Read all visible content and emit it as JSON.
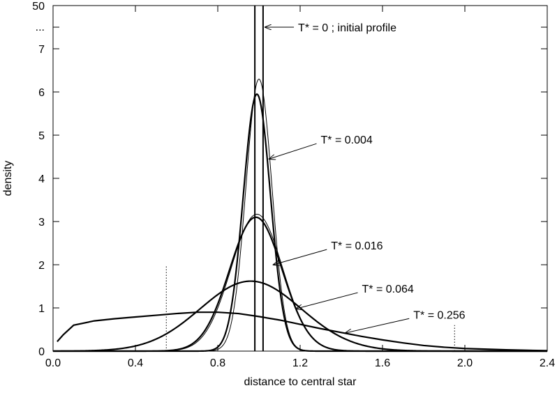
{
  "chart_data": {
    "type": "line",
    "title": "",
    "xlabel": "distance to central star",
    "ylabel": "density",
    "xlim": [
      0,
      2.4
    ],
    "ylim": [
      0,
      8
    ],
    "axis_break": {
      "top_label": "50",
      "break_label": "..."
    },
    "x_ticks": [
      {
        "value": 0.0,
        "label": "0.0"
      },
      {
        "value": 0.4,
        "label": "0.4"
      },
      {
        "value": 0.8,
        "label": "0.8"
      },
      {
        "value": 1.2,
        "label": "1.2"
      },
      {
        "value": 1.6,
        "label": "1.6"
      },
      {
        "value": 2.0,
        "label": "2.0"
      },
      {
        "value": 2.4,
        "label": "2.4"
      }
    ],
    "y_ticks": [
      {
        "value": 0,
        "label": "0"
      },
      {
        "value": 1,
        "label": "1"
      },
      {
        "value": 2,
        "label": "2"
      },
      {
        "value": 3,
        "label": "3"
      },
      {
        "value": 4,
        "label": "4"
      },
      {
        "value": 5,
        "label": "5"
      },
      {
        "value": 6,
        "label": "6"
      },
      {
        "value": 7,
        "label": "7"
      }
    ],
    "grid": false,
    "initial_profile": {
      "x": [
        0.98,
        1.02
      ]
    },
    "series": [
      {
        "T": 0.004,
        "kind": "model",
        "mu": 1.0,
        "sigma": 0.063,
        "peak": 6.3,
        "stroke": "thin"
      },
      {
        "T": 0.004,
        "kind": "simulation",
        "mu": 0.99,
        "sigma": 0.066,
        "peak": 5.95,
        "stroke": "thick"
      },
      {
        "T": 0.016,
        "kind": "model",
        "mu": 0.99,
        "sigma": 0.125,
        "peak": 3.17,
        "stroke": "thin"
      },
      {
        "T": 0.016,
        "kind": "simulation",
        "mu": 0.985,
        "sigma": 0.128,
        "peak": 3.1,
        "stroke": "thick"
      },
      {
        "T": 0.064,
        "kind": "simulation",
        "mu": 0.96,
        "sigma": 0.245,
        "peak": 1.62,
        "stroke": "thick"
      },
      {
        "T": 0.256,
        "kind": "simulation",
        "x": [
          0.02,
          0.05,
          0.1,
          0.2,
          0.3,
          0.4,
          0.5,
          0.6,
          0.7,
          0.8,
          0.9,
          1.0,
          1.1,
          1.2,
          1.3,
          1.4,
          1.5,
          1.6,
          1.7,
          1.8,
          1.9,
          2.0,
          2.2,
          2.4
        ],
        "y": [
          0.22,
          0.38,
          0.6,
          0.7,
          0.75,
          0.79,
          0.83,
          0.87,
          0.9,
          0.9,
          0.87,
          0.8,
          0.72,
          0.62,
          0.52,
          0.43,
          0.34,
          0.26,
          0.19,
          0.13,
          0.09,
          0.06,
          0.03,
          0.01
        ],
        "stroke": "thick"
      }
    ],
    "markers": [
      {
        "x": 0.55,
        "y_top": 2.0
      },
      {
        "x": 1.95,
        "y_top": 0.6
      }
    ],
    "annotations": [
      {
        "text": "T* = 0 ; initial profile",
        "text_x": 1.19,
        "text_y": 7.5,
        "arrow_to_x": 1.03,
        "arrow_to_y": 7.5
      },
      {
        "text": "T* = 0.004",
        "text_x": 1.3,
        "text_y": 4.9,
        "arrow_to_x": 1.05,
        "arrow_to_y": 4.45
      },
      {
        "text": "T* = 0.016",
        "text_x": 1.35,
        "text_y": 2.45,
        "arrow_to_x": 1.07,
        "arrow_to_y": 2.0
      },
      {
        "text": "T* = 0.064",
        "text_x": 1.5,
        "text_y": 1.45,
        "arrow_to_x": 1.18,
        "arrow_to_y": 0.98
      },
      {
        "text": "T* = 0.256",
        "text_x": 1.75,
        "text_y": 0.85,
        "arrow_to_x": 1.42,
        "arrow_to_y": 0.42
      }
    ]
  }
}
